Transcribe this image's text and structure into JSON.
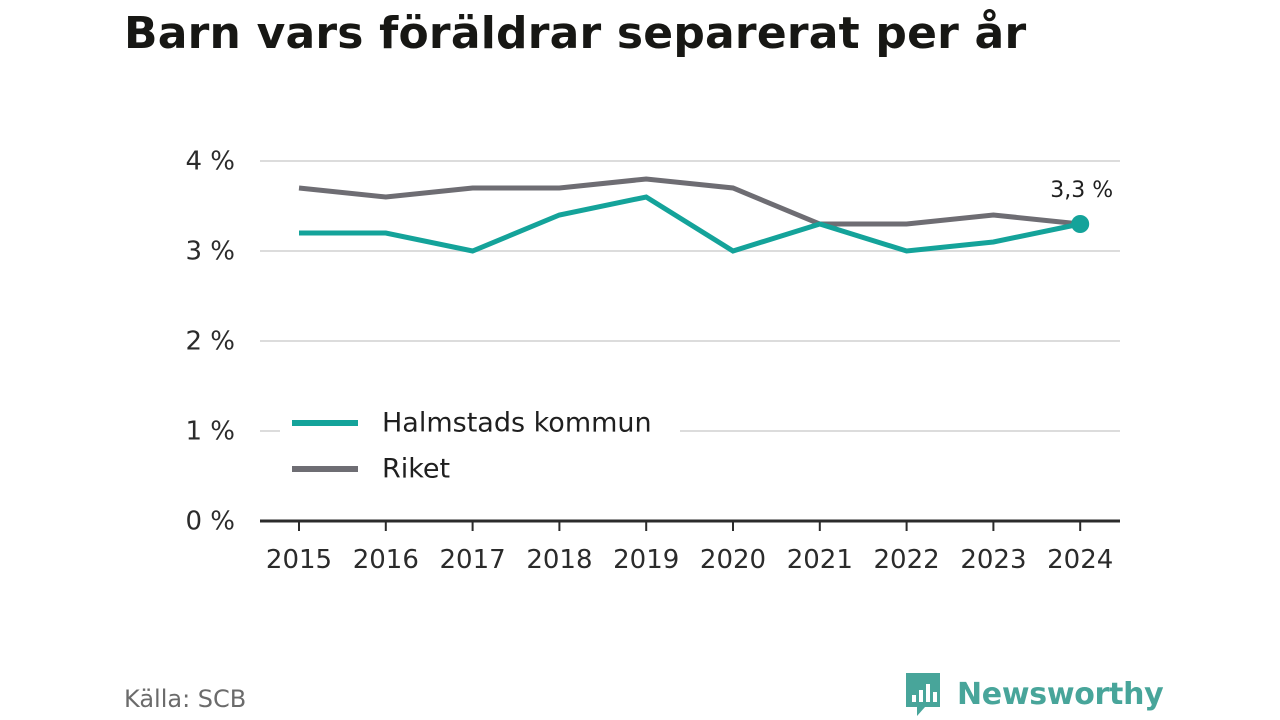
{
  "title": "Barn vars föräldrar separerat per år",
  "source": "Källa: SCB",
  "brand": {
    "name": "Newsworthy",
    "icon": "bar-chart-bubble-icon"
  },
  "colors": {
    "halmstad": "#14a39a",
    "riket": "#6e6d73",
    "grid": "#dcdcdc",
    "axis": "#2b2b2b",
    "text": "#2b2b2b",
    "brand": "#48a59a"
  },
  "chart_data": {
    "type": "line",
    "title": "Barn vars föräldrar separerat per år",
    "xlabel": "",
    "ylabel": "",
    "x": [
      "2015",
      "2016",
      "2017",
      "2018",
      "2019",
      "2020",
      "2021",
      "2022",
      "2023",
      "2024"
    ],
    "y_ticks": [
      0,
      1,
      2,
      3,
      4
    ],
    "y_tick_labels": [
      "0 %",
      "1 %",
      "2 %",
      "3 %",
      "4 %"
    ],
    "ylim": [
      0,
      4
    ],
    "grid": true,
    "legend_position": "bottom-left",
    "series": [
      {
        "name": "Halmstads kommun",
        "values": [
          3.2,
          3.2,
          3.0,
          3.4,
          3.6,
          3.0,
          3.3,
          3.0,
          3.1,
          3.3
        ]
      },
      {
        "name": "Riket",
        "values": [
          3.7,
          3.6,
          3.7,
          3.7,
          3.8,
          3.7,
          3.3,
          3.3,
          3.4,
          3.3
        ]
      }
    ],
    "annotation": {
      "series": "Halmstads kommun",
      "x": "2024",
      "label": "3,3 %"
    }
  }
}
